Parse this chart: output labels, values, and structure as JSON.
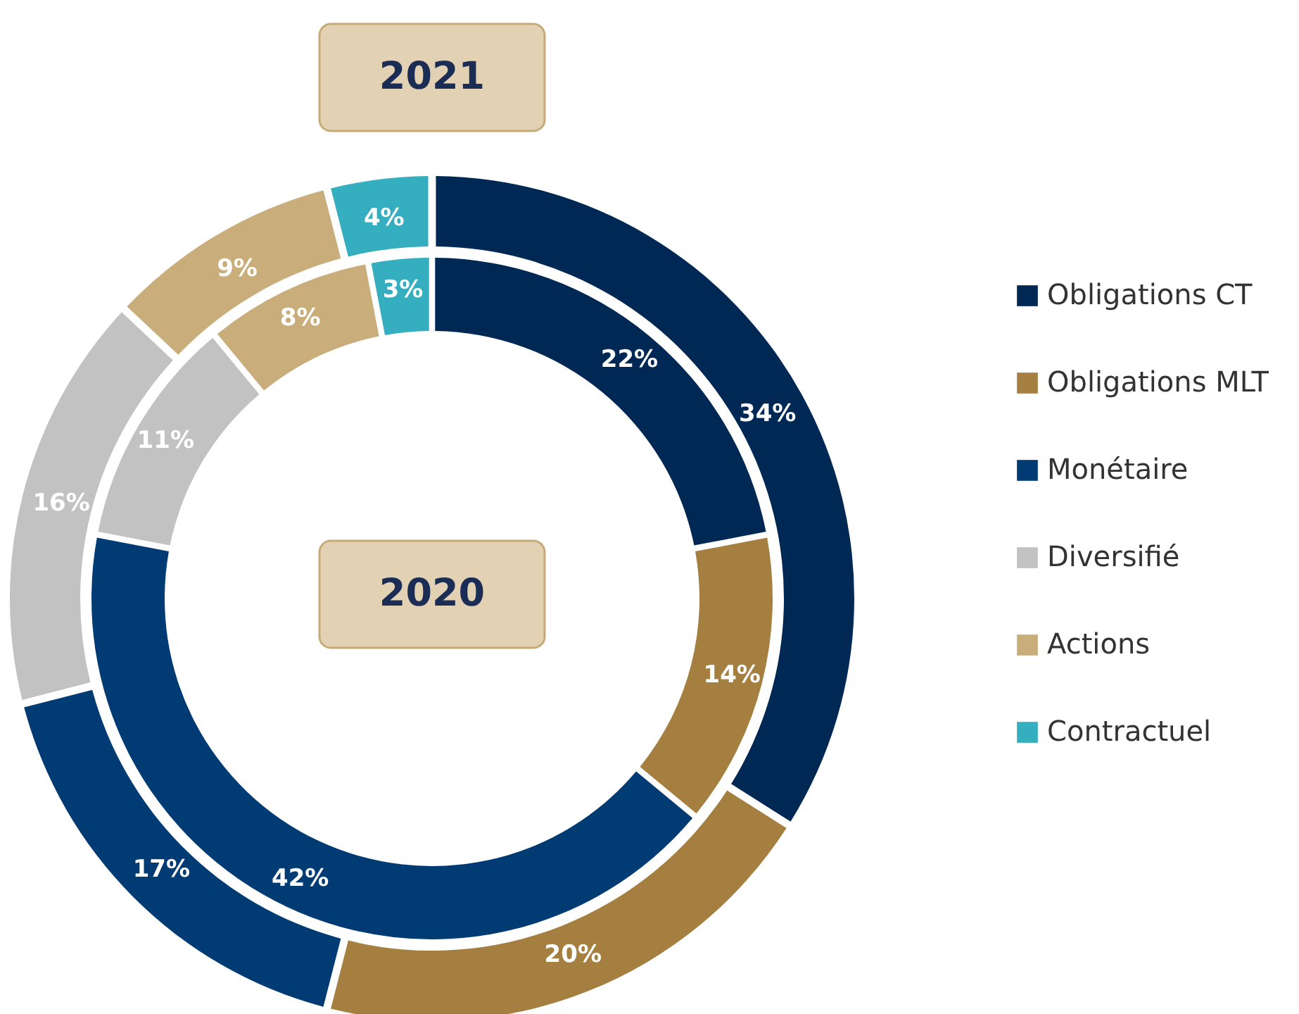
{
  "chart_data": {
    "type": "donut",
    "categories": [
      "Obligations CT",
      "Obligations MLT",
      "Monétaire",
      "Diversifié",
      "Actions",
      "Contractuel"
    ],
    "colors": [
      "#002855",
      "#a47f40",
      "#003b73",
      "#c2c2c2",
      "#c9ae7c",
      "#35afc0"
    ],
    "series": [
      {
        "name": "2021",
        "values": [
          34,
          20,
          17,
          16,
          9,
          4
        ],
        "value_labels": [
          "34%",
          "20%",
          "17%",
          "16%",
          "9%",
          "4%"
        ]
      },
      {
        "name": "2020",
        "values": [
          22,
          14,
          42,
          11,
          8,
          3
        ],
        "value_labels": [
          "22%",
          "14%",
          "42%",
          "11%",
          "8%",
          "3%"
        ]
      }
    ],
    "legend": "right"
  }
}
